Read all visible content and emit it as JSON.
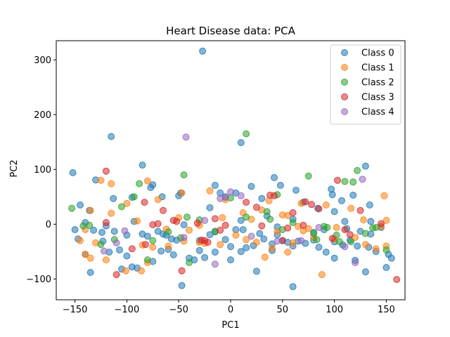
{
  "chart_data": {
    "type": "scatter",
    "title": "Heart Disease data: PCA",
    "xlabel": "PC1",
    "ylabel": "PC2",
    "xlim": [
      -168,
      168
    ],
    "ylim": [
      -138,
      335
    ],
    "xticks": [
      -150,
      -100,
      -50,
      0,
      50,
      100,
      150
    ],
    "yticks": [
      -100,
      0,
      100,
      200,
      300
    ],
    "xtick_labels": [
      "−150",
      "−100",
      "−50",
      "0",
      "50",
      "100",
      "150"
    ],
    "ytick_labels": [
      "−100",
      "0",
      "100",
      "200",
      "300"
    ],
    "grid": false,
    "legend_position": "top-right",
    "marker_alpha": 0.55,
    "series": [
      {
        "name": "Class 0",
        "color": "#1f77b4",
        "points": [
          [
            -27,
            316
          ],
          [
            -115,
            160
          ],
          [
            10,
            149
          ],
          [
            -152,
            94
          ],
          [
            -85,
            108
          ],
          [
            130,
            106
          ],
          [
            -130,
            81
          ],
          [
            -75,
            72
          ],
          [
            -77,
            67
          ],
          [
            -48,
            57
          ],
          [
            -50,
            52
          ],
          [
            -66,
            50
          ],
          [
            -95,
            49
          ],
          [
            -113,
            47
          ],
          [
            -145,
            35
          ],
          [
            -136,
            25
          ],
          [
            -15,
            71
          ],
          [
            5,
            57
          ],
          [
            20,
            69
          ],
          [
            42,
            85
          ],
          [
            48,
            71
          ],
          [
            63,
            62
          ],
          [
            97,
            64
          ],
          [
            98,
            54
          ],
          [
            118,
            53
          ],
          [
            107,
            43
          ],
          [
            134,
            35
          ],
          [
            -140,
            3
          ],
          [
            -150,
            -10
          ],
          [
            -132,
            -11
          ],
          [
            -124,
            -15
          ],
          [
            -112,
            -13
          ],
          [
            -100,
            -20
          ],
          [
            -85,
            -18
          ],
          [
            -70,
            -13
          ],
          [
            -65,
            -18
          ],
          [
            -62,
            -20
          ],
          [
            -57,
            -27
          ],
          [
            -52,
            -29
          ],
          [
            -30,
            -30
          ],
          [
            -20,
            -19
          ],
          [
            -15,
            -13
          ],
          [
            -5,
            -28
          ],
          [
            0,
            -41
          ],
          [
            5,
            -10
          ],
          [
            12,
            -10
          ],
          [
            15,
            -43
          ],
          [
            22,
            -39
          ],
          [
            28,
            -17
          ],
          [
            32,
            -27
          ],
          [
            40,
            -36
          ],
          [
            45,
            -19
          ],
          [
            50,
            -30
          ],
          [
            55,
            -33
          ],
          [
            60,
            -40
          ],
          [
            65,
            -31
          ],
          [
            72,
            -35
          ],
          [
            80,
            -29
          ],
          [
            85,
            -42
          ],
          [
            92,
            -51
          ],
          [
            100,
            -32
          ],
          [
            108,
            -38
          ],
          [
            115,
            -29
          ],
          [
            122,
            -40
          ],
          [
            133,
            -42
          ],
          [
            140,
            -50
          ],
          [
            150,
            -79
          ],
          [
            -147,
            -27
          ],
          [
            -140,
            -55
          ],
          [
            -123,
            -31
          ],
          [
            -117,
            -51
          ],
          [
            -107,
            -47
          ],
          [
            -100,
            -58
          ],
          [
            -95,
            -78
          ],
          [
            -90,
            -80
          ],
          [
            -67,
            -49
          ],
          [
            -55,
            -56
          ],
          [
            -40,
            -62
          ],
          [
            -35,
            -65
          ],
          [
            -47,
            -112
          ],
          [
            25,
            -86
          ],
          [
            60,
            -114
          ],
          [
            100,
            -62
          ],
          [
            120,
            -66
          ],
          [
            130,
            -87
          ],
          [
            -135,
            -88
          ],
          [
            -105,
            -82
          ],
          [
            -75,
            -68
          ],
          [
            -60,
            -46
          ],
          [
            -30,
            -48
          ],
          [
            -25,
            -61
          ],
          [
            -15,
            -51
          ],
          [
            0,
            -65
          ],
          [
            10,
            -50
          ],
          [
            40,
            -48
          ],
          [
            80,
            -15
          ],
          [
            90,
            -10
          ],
          [
            112,
            -8
          ],
          [
            125,
            -13
          ],
          [
            135,
            -18
          ],
          [
            145,
            -6
          ],
          [
            152,
            -55
          ],
          [
            155,
            -62
          ],
          [
            -10,
            57
          ],
          [
            30,
            47
          ],
          [
            70,
            40
          ],
          [
            100,
            23
          ],
          [
            135,
            5
          ],
          [
            -120,
            -3
          ],
          [
            -93,
            5
          ],
          [
            -45,
            -1
          ],
          [
            -20,
            30
          ],
          [
            10,
            7
          ],
          [
            35,
            15
          ],
          [
            60,
            9
          ],
          [
            84,
            29
          ],
          [
            110,
            5
          ],
          [
            -5,
            50
          ],
          [
            -80,
            -22
          ],
          [
            45,
            -5
          ]
        ]
      },
      {
        "name": "Class 1",
        "color": "#ff7f0e",
        "points": [
          [
            -115,
            74
          ],
          [
            -125,
            80
          ],
          [
            -80,
            79
          ],
          [
            -47,
            57
          ],
          [
            -70,
            45
          ],
          [
            -100,
            38
          ],
          [
            -115,
            20
          ],
          [
            -135,
            25
          ],
          [
            -140,
            -10
          ],
          [
            -130,
            -34
          ],
          [
            -140,
            -55
          ],
          [
            -145,
            -30
          ],
          [
            -135,
            -62
          ],
          [
            -120,
            -65
          ],
          [
            -101,
            -85
          ],
          [
            -86,
            -85
          ],
          [
            -80,
            -70
          ],
          [
            -75,
            -42
          ],
          [
            -60,
            -40
          ],
          [
            -45,
            -31
          ],
          [
            -40,
            -11
          ],
          [
            -30,
            -33
          ],
          [
            -25,
            -35
          ],
          [
            -10,
            -37
          ],
          [
            5,
            -20
          ],
          [
            15,
            -28
          ],
          [
            25,
            -33
          ],
          [
            33,
            -60
          ],
          [
            40,
            -44
          ],
          [
            55,
            -51
          ],
          [
            60,
            -34
          ],
          [
            65,
            -4
          ],
          [
            70,
            -12
          ],
          [
            80,
            -24
          ],
          [
            88,
            -92
          ],
          [
            100,
            -27
          ],
          [
            120,
            -24
          ],
          [
            130,
            -37
          ],
          [
            140,
            -45
          ],
          [
            150,
            -40
          ],
          [
            -85,
            -38
          ],
          [
            -50,
            12
          ],
          [
            -20,
            61
          ],
          [
            -5,
            45
          ],
          [
            12,
            21
          ],
          [
            30,
            26
          ],
          [
            37,
            43
          ],
          [
            50,
            17
          ],
          [
            55,
            16
          ],
          [
            68,
            38
          ],
          [
            92,
            35
          ],
          [
            116,
            29
          ],
          [
            128,
            8
          ],
          [
            148,
            52
          ],
          [
            150,
            7
          ],
          [
            -90,
            6
          ],
          [
            -62,
            -9
          ],
          [
            -30,
            -2
          ],
          [
            -8,
            12
          ],
          [
            20,
            9
          ],
          [
            45,
            -13
          ],
          [
            75,
            -8
          ],
          [
            102,
            -6
          ],
          [
            145,
            -4
          ]
        ]
      },
      {
        "name": "Class 2",
        "color": "#2ca02c",
        "points": [
          [
            15,
            165
          ],
          [
            -45,
            90
          ],
          [
            -93,
            50
          ],
          [
            -88,
            74
          ],
          [
            -105,
            32
          ],
          [
            -153,
            29
          ],
          [
            -142,
            -3
          ],
          [
            -136,
            -2
          ],
          [
            -125,
            -37
          ],
          [
            -112,
            -28
          ],
          [
            -80,
            -65
          ],
          [
            -60,
            -14
          ],
          [
            -48,
            -25
          ],
          [
            -42,
            13
          ],
          [
            -30,
            8
          ],
          [
            -15,
            -14
          ],
          [
            0,
            48
          ],
          [
            15,
            13
          ],
          [
            35,
            23
          ],
          [
            38,
            9
          ],
          [
            50,
            -10
          ],
          [
            60,
            3
          ],
          [
            75,
            88
          ],
          [
            80,
            -17
          ],
          [
            83,
            -28
          ],
          [
            90,
            -4
          ],
          [
            102,
            -20
          ],
          [
            105,
            -32
          ],
          [
            110,
            78
          ],
          [
            118,
            77
          ],
          [
            122,
            98
          ],
          [
            130,
            -17
          ],
          [
            137,
            -7
          ],
          [
            140,
            -6
          ],
          [
            150,
            -47
          ],
          [
            -75,
            -30
          ],
          [
            -40,
            -70
          ],
          [
            45,
            54
          ],
          [
            93,
            -6
          ],
          [
            116,
            -32
          ]
        ]
      },
      {
        "name": "Class 3",
        "color": "#d62728",
        "points": [
          [
            -120,
            97
          ],
          [
            -83,
            40
          ],
          [
            -82,
            -37
          ],
          [
            -75,
            -1
          ],
          [
            -70,
            1
          ],
          [
            -65,
            25
          ],
          [
            -55,
            7
          ],
          [
            -52,
            5
          ],
          [
            -47,
            -85
          ],
          [
            -28,
            -29
          ],
          [
            -25,
            -30
          ],
          [
            -22,
            -33
          ],
          [
            -15,
            10
          ],
          [
            -5,
            -2
          ],
          [
            15,
            40
          ],
          [
            25,
            31
          ],
          [
            30,
            -3
          ],
          [
            38,
            53
          ],
          [
            42,
            52
          ],
          [
            55,
            -7
          ],
          [
            60,
            21
          ],
          [
            70,
            -2
          ],
          [
            72,
            41
          ],
          [
            85,
            28
          ],
          [
            98,
            -26
          ],
          [
            103,
            80
          ],
          [
            110,
            -10
          ],
          [
            115,
            -19
          ],
          [
            125,
            25
          ],
          [
            145,
            1
          ],
          [
            160,
            -101
          ],
          [
            -110,
            -92
          ],
          [
            -120,
            3
          ],
          [
            -10,
            -11
          ],
          [
            50,
            -30
          ],
          [
            -95,
            -45
          ],
          [
            -32,
            2
          ],
          [
            78,
            36
          ]
        ]
      },
      {
        "name": "Class 4",
        "color": "#9467bd",
        "points": [
          [
            -43,
            159
          ],
          [
            127,
            82
          ],
          [
            -5,
            49
          ],
          [
            10,
            52
          ],
          [
            -10,
            47
          ],
          [
            0,
            59
          ],
          [
            -102,
            -12
          ],
          [
            -110,
            -34
          ],
          [
            -122,
            -49
          ],
          [
            -45,
            -24
          ],
          [
            -15,
            -73
          ],
          [
            45,
            -31
          ],
          [
            68,
            -30
          ],
          [
            120,
            -70
          ],
          [
            -25,
            7
          ],
          [
            85,
            -6
          ],
          [
            20,
            -22
          ],
          [
            110,
            -41
          ]
        ]
      }
    ]
  }
}
